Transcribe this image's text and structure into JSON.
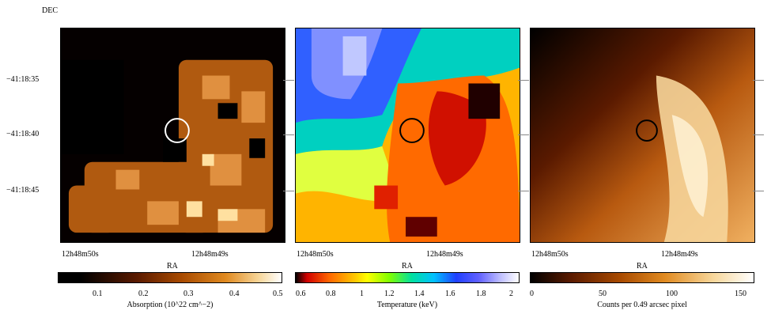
{
  "axes": {
    "dec_label": "DEC",
    "dec_ticks": [
      "−41:18:35",
      "−41:18:40",
      "−41:18:45"
    ],
    "ra_label": "RA",
    "ra_ticks": [
      "12h48m50s",
      "12h48m49s"
    ]
  },
  "panels": [
    {
      "name": "absorption",
      "colorbar": {
        "label": "Absorption (10^22 cm^−2)",
        "ticks": [
          "0.1",
          "0.2",
          "0.3",
          "0.4",
          "0.5"
        ],
        "colors": [
          "#000000",
          "#5a1a00",
          "#a84a00",
          "#e08a20",
          "#f7d79b",
          "#ffffff"
        ]
      }
    },
    {
      "name": "temperature",
      "colorbar": {
        "label": "Temperature (keV)",
        "ticks": [
          "0.6",
          "0.8",
          "1",
          "1.2",
          "1.4",
          "1.6",
          "1.8",
          "2"
        ],
        "colors": [
          "#000000",
          "#d00000",
          "#ff6600",
          "#ffcc00",
          "#ffff00",
          "#80ff00",
          "#00e0a0",
          "#00c0ff",
          "#2040ff",
          "#6060ff",
          "#c0c0ff",
          "#ffffff"
        ]
      }
    },
    {
      "name": "counts",
      "colorbar": {
        "label": "Counts per 0.49 arcsec pixel",
        "ticks": [
          "0",
          "50",
          "100",
          "150"
        ],
        "colors": [
          "#000000",
          "#5a1a00",
          "#a84a00",
          "#e08a20",
          "#f7d79b",
          "#ffffff"
        ]
      }
    }
  ]
}
